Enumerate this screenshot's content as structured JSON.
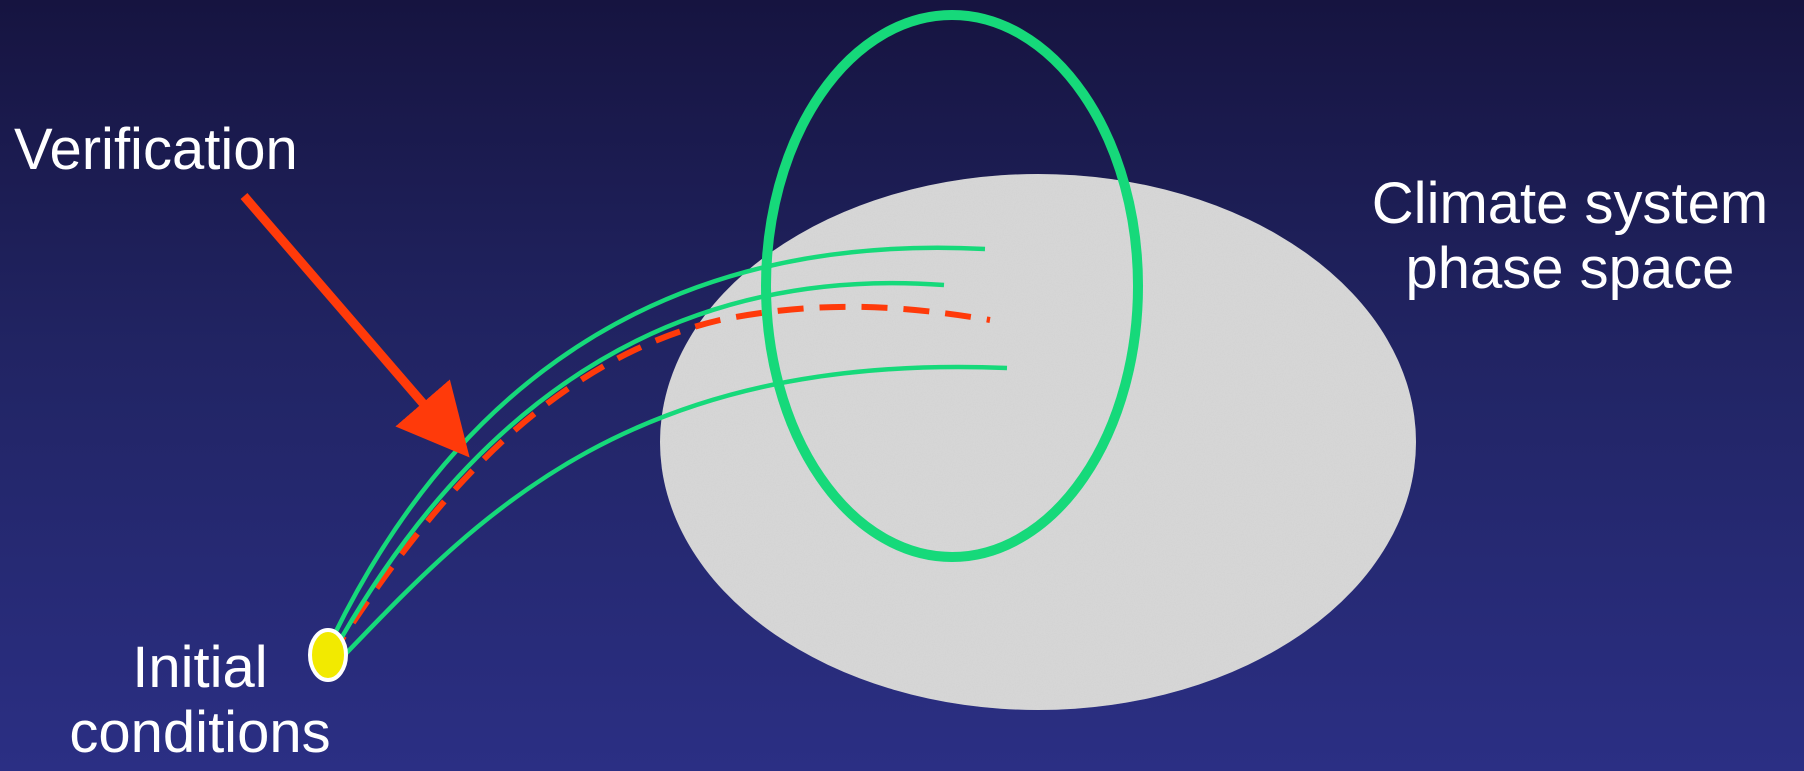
{
  "labels": {
    "verification": "Verification",
    "climate_line1": "Climate system",
    "climate_line2": "phase space",
    "initial_line1": "Initial",
    "initial_line2": "conditions"
  },
  "colors": {
    "background_top": "#161440",
    "background_bottom": "#2b2f84",
    "phase_space_fill": "#d9d9d9",
    "trajectory": "#16d97a",
    "verification": "#ff3a0a",
    "initial_point": "#f2ea00",
    "text": "#ffffff"
  }
}
